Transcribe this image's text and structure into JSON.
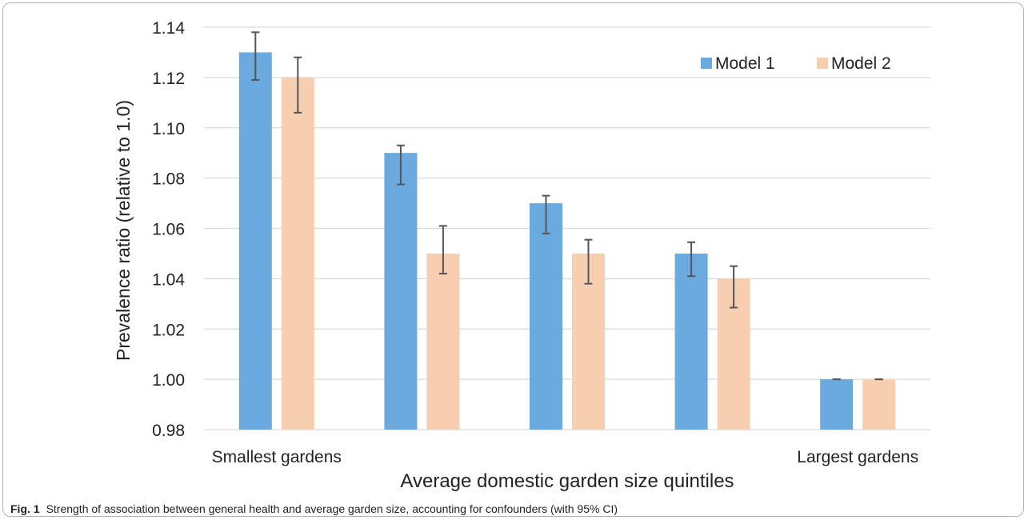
{
  "chart_data": {
    "type": "bar",
    "categories": [
      "Smallest gardens",
      "",
      "",
      "",
      "Largest gardens"
    ],
    "series": [
      {
        "name": "Model 1",
        "color": "#6aaade",
        "values": [
          1.13,
          1.09,
          1.07,
          1.05,
          1.0
        ],
        "ci_low": [
          1.119,
          1.0775,
          1.058,
          1.041,
          1.0
        ],
        "ci_high": [
          1.138,
          1.093,
          1.073,
          1.0545,
          1.0
        ]
      },
      {
        "name": "Model 2",
        "color": "#f8ceb0",
        "values": [
          1.12,
          1.05,
          1.05,
          1.04,
          1.0
        ],
        "ci_low": [
          1.106,
          1.042,
          1.038,
          1.0285,
          1.0
        ],
        "ci_high": [
          1.128,
          1.061,
          1.0555,
          1.045,
          1.0
        ]
      }
    ],
    "ylim": [
      0.98,
      1.14
    ],
    "yticks": [
      "0.98",
      "1.00",
      "1.02",
      "1.04",
      "1.06",
      "1.08",
      "1.10",
      "1.12",
      "1.14"
    ],
    "ylabel": "Prevalence ratio (relative to 1.0)",
    "xlabel": "Average domestic garden size quintiles",
    "legend_position": "top-right",
    "grid": true,
    "error_bar_color": "#555555"
  },
  "caption": {
    "label": "Fig. 1",
    "text": "Strength of association between general health and average garden size, accounting for confounders (with 95% CI)"
  }
}
